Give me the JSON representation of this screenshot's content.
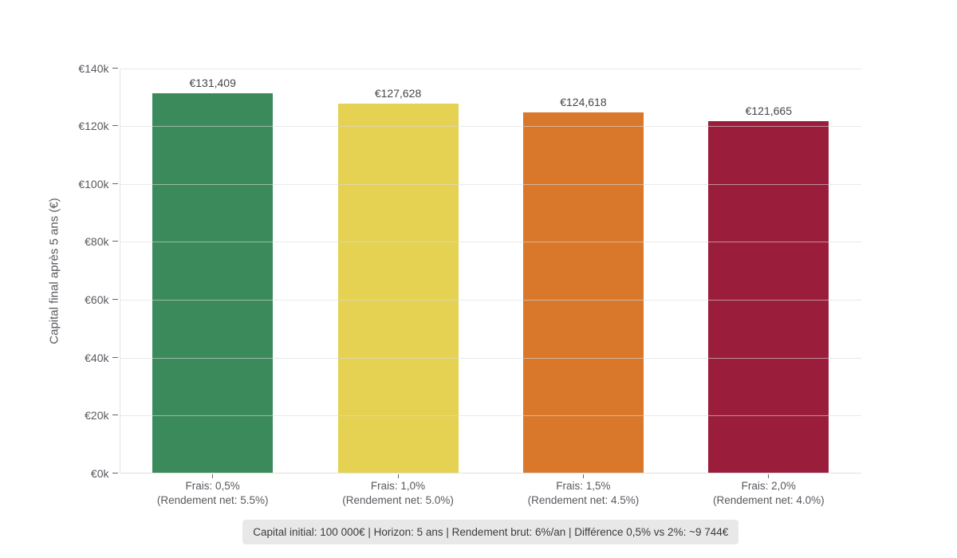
{
  "chart_data": {
    "type": "bar",
    "title": "",
    "xlabel": "",
    "ylabel": "Capital final après 5 ans (€)",
    "ylim": [
      0,
      140000
    ],
    "grid": true,
    "legend_position": "none",
    "yticks": [
      {
        "value": 0,
        "label": "€0k"
      },
      {
        "value": 20000,
        "label": "€20k"
      },
      {
        "value": 40000,
        "label": "€40k"
      },
      {
        "value": 60000,
        "label": "€60k"
      },
      {
        "value": 80000,
        "label": "€80k"
      },
      {
        "value": 100000,
        "label": "€100k"
      },
      {
        "value": 120000,
        "label": "€120k"
      },
      {
        "value": 140000,
        "label": "€140k"
      }
    ],
    "bars": [
      {
        "value": 131409,
        "value_label": "€131,409",
        "tick_line1": "Frais: 0,5%",
        "tick_line2": "(Rendement net: 5.5%)",
        "color": "#3a8a5c"
      },
      {
        "value": 127628,
        "value_label": "€127,628",
        "tick_line1": "Frais: 1,0%",
        "tick_line2": "(Rendement net: 5.0%)",
        "color": "#e5d252"
      },
      {
        "value": 124618,
        "value_label": "€124,618",
        "tick_line1": "Frais: 1,5%",
        "tick_line2": "(Rendement net: 4.5%)",
        "color": "#d9782b"
      },
      {
        "value": 121665,
        "value_label": "€121,665",
        "tick_line1": "Frais: 2,0%",
        "tick_line2": "(Rendement net: 4.0%)",
        "color": "#9a1e3b"
      }
    ]
  },
  "caption": "Capital initial: 100 000€ | Horizon: 5 ans | Rendement brut: 6%/an | Différence 0,5% vs 2%: ~9 744€"
}
